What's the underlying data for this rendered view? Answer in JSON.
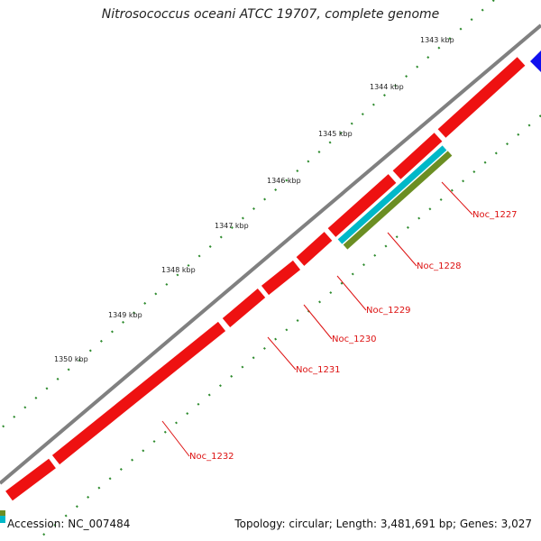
{
  "title": "Nitrosococcus oceani ATCC 19707, complete genome",
  "accession_text": "Accession: NC_007484",
  "summary_text": "Topology: circular; Length: 3,481,691 bp; Genes: 3,027",
  "ticks": [
    "1343 kbp",
    "1344 kbp",
    "1345 kbp",
    "1346 kbp",
    "1347 kbp",
    "1348 kbp",
    "1349 kbp",
    "1350 kbp"
  ],
  "genes": [
    "Noc_1227",
    "Noc_1228",
    "Noc_1229",
    "Noc_1230",
    "Noc_1231",
    "Noc_1232"
  ],
  "colors": {
    "backbone": "#808080",
    "cds": "#ee1111",
    "cds_shade": "#bb0000",
    "trna": "#00b8c8",
    "gene": "#6b8e23",
    "other": "#1010ee",
    "tick": "#2e8b2e",
    "label": "#dd1111"
  }
}
